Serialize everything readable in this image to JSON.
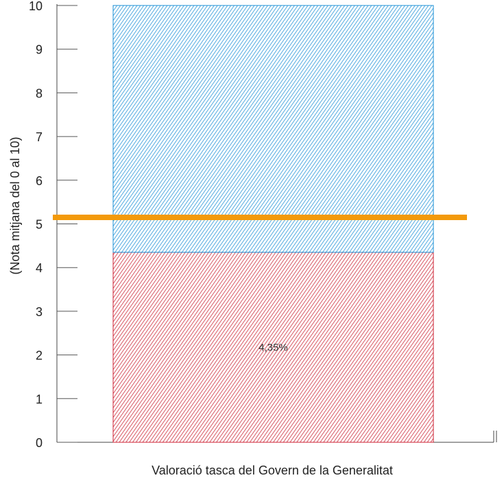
{
  "chart_data": {
    "type": "bar",
    "orientation": "vertical-stacked",
    "xlabel": "Valoració tasca del Govern de la Generalitat",
    "ylabel": "(Nota mitjana del 0 al 10)",
    "ylim": [
      0,
      10
    ],
    "yticks": [
      "0",
      "1",
      "2",
      "3",
      "4",
      "5",
      "6",
      "7",
      "8",
      "9",
      "10"
    ],
    "grid": false,
    "legend": "none",
    "segments": [
      {
        "from": 0,
        "to": 4.35,
        "color": "#cc2233",
        "label": "4,35%"
      },
      {
        "from": 4.35,
        "to": 10,
        "color": "#1a8fd6"
      }
    ],
    "reference_line": {
      "value": 5.15,
      "color": "#f39a0b"
    }
  }
}
